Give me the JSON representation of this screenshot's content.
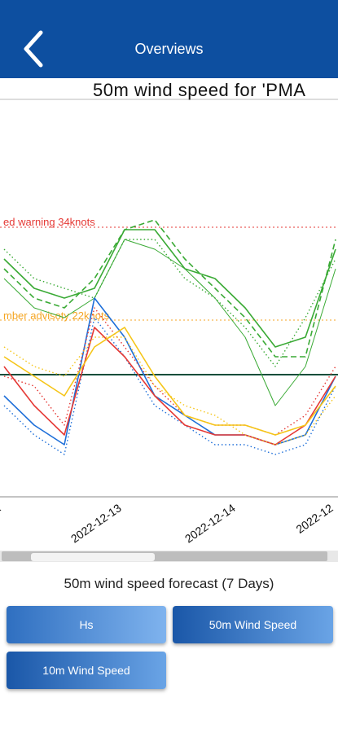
{
  "header": {
    "title": "Overviews",
    "back_icon": "chevron-left-icon"
  },
  "chart": {
    "title": "50m wind speed for 'PMA",
    "red_warning_label": "ed warning 34knots",
    "amber_advisory_label": "mber advisoty 22knots",
    "x_tick_labels": [
      "2",
      "2022-12-13",
      "2022-12-14",
      "2022-12"
    ]
  },
  "forecast_label": "50m wind speed forecast (7 Days)",
  "buttons": {
    "hs": "Hs",
    "wind50": "50m Wind Speed",
    "wind10": "10m Wind Speed"
  },
  "colors": {
    "appbar": "#0d4fa0",
    "red_warning": "#e53935",
    "amber_advisory": "#f5a623",
    "green_series": "#3aaa35",
    "threshold_line": "#0b4d3a"
  },
  "chart_data": {
    "type": "line",
    "title": "50m wind speed for 'PMA",
    "xlabel": "",
    "ylabel": "",
    "x": [
      "2022-12-12 12:00",
      "2022-12-12 18:00",
      "2022-12-13 00:00",
      "2022-12-13 06:00",
      "2022-12-13 12:00",
      "2022-12-13 18:00",
      "2022-12-14 00:00",
      "2022-12-14 06:00",
      "2022-12-14 12:00",
      "2022-12-14 18:00",
      "2022-12-15 00:00",
      "2022-12-15 06:00"
    ],
    "ylim": [
      0,
      40
    ],
    "reference_lines": [
      {
        "label": "red warning 34knots",
        "value": 34,
        "color": "#e53935",
        "style": "dotted"
      },
      {
        "label": "amber advisoty 22knots",
        "value": 22,
        "color": "#f5a623",
        "style": "dotted"
      },
      {
        "value": 18,
        "color": "#0b4d3a",
        "style": "solid"
      }
    ],
    "series": [
      {
        "color": "#3aaa35",
        "style": "solid",
        "values": [
          24,
          21,
          20,
          21,
          27,
          27,
          23,
          22,
          19,
          15,
          16,
          25
        ]
      },
      {
        "color": "#3aaa35",
        "style": "dashed",
        "values": [
          23,
          20,
          19,
          22,
          27,
          28,
          24,
          21,
          18,
          14,
          14,
          26
        ]
      },
      {
        "color": "#3aaa35",
        "style": "dotted",
        "values": [
          25,
          22,
          21,
          20,
          26,
          26,
          22,
          20,
          17,
          13,
          18,
          24
        ]
      },
      {
        "color": "#3aaa35",
        "style": "thin",
        "values": [
          22,
          19,
          18,
          20,
          26,
          25,
          23,
          20,
          16,
          9,
          13,
          23
        ]
      },
      {
        "color": "#1e6fd9",
        "style": "solid",
        "values": [
          10,
          7,
          5,
          20,
          16,
          10,
          8,
          6,
          6,
          5,
          6,
          12
        ]
      },
      {
        "color": "#1e6fd9",
        "style": "dotted",
        "values": [
          9,
          6,
          4,
          18,
          14,
          9,
          7,
          5,
          5,
          4,
          5,
          11
        ]
      },
      {
        "color": "#e53935",
        "style": "solid",
        "values": [
          13,
          9,
          6,
          17,
          14,
          10,
          7,
          6,
          6,
          5,
          7,
          12
        ]
      },
      {
        "color": "#e53935",
        "style": "dotted",
        "values": [
          12,
          11,
          7,
          19,
          15,
          11,
          8,
          7,
          7,
          6,
          8,
          13
        ]
      },
      {
        "color": "#f5c518",
        "style": "solid",
        "values": [
          14,
          12,
          10,
          15,
          17,
          12,
          8,
          7,
          7,
          6,
          7,
          11
        ]
      },
      {
        "color": "#f5c518",
        "style": "dotted",
        "values": [
          15,
          13,
          12,
          16,
          16,
          11,
          9,
          8,
          6,
          5,
          6,
          10
        ]
      }
    ]
  }
}
